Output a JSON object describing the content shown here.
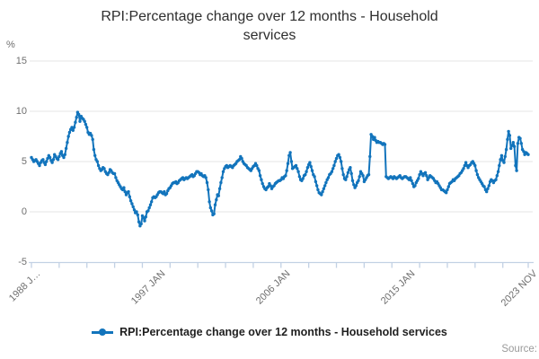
{
  "title": "RPI:Percentage change over 12 months - Household services",
  "axes": {
    "y_unit": "%",
    "y_ticks": [
      {
        "label": "15",
        "value": 15
      },
      {
        "label": "10",
        "value": 10
      },
      {
        "label": "5",
        "value": 5
      },
      {
        "label": "0",
        "value": 0
      },
      {
        "label": "-5",
        "value": -5
      }
    ],
    "x_ticks": [
      {
        "label": "1988 J…",
        "month": 0
      },
      {
        "label": "1997 JAN",
        "month": 108
      },
      {
        "label": "2006 JAN",
        "month": 216
      },
      {
        "label": "2015 JAN",
        "month": 324
      },
      {
        "label": "2023 NOV",
        "month": 430
      }
    ]
  },
  "legend": {
    "label": "RPI:Percentage change over 12 months - Household services"
  },
  "source_label": "Source:",
  "colors": {
    "series": "#1274bc",
    "grid": "#e4e4e4",
    "axis": "#c2d1e4"
  },
  "chart_data": {
    "type": "line",
    "title": "RPI:Percentage change over 12 months - Household services",
    "xlabel": "",
    "ylabel": "%",
    "ylim": [
      -5,
      15
    ],
    "grid": "horizontal",
    "legend_position": "bottom",
    "x_start": "1988-01",
    "x_end": "2023-11",
    "frequency": "monthly",
    "minor_tick_interval_months": 24,
    "series": [
      {
        "name": "RPI:Percentage change over 12 months - Household services",
        "values": [
          5.4,
          5.2,
          5.0,
          5.1,
          5.2,
          5.0,
          4.8,
          4.6,
          4.9,
          5.1,
          5.2,
          4.9,
          4.7,
          5.0,
          5.3,
          5.6,
          5.4,
          5.1,
          4.9,
          5.2,
          5.7,
          5.5,
          5.3,
          5.2,
          5.5,
          5.8,
          6.0,
          5.6,
          5.4,
          5.7,
          6.3,
          6.9,
          7.5,
          7.9,
          8.2,
          8.4,
          8.1,
          8.4,
          8.9,
          9.4,
          9.9,
          9.7,
          9.0,
          9.5,
          9.3,
          9.2,
          9.0,
          8.7,
          8.4,
          7.9,
          7.7,
          7.8,
          7.6,
          7.2,
          6.2,
          5.6,
          5.2,
          5.0,
          4.6,
          4.3,
          4.1,
          4.2,
          4.4,
          4.3,
          4.0,
          3.8,
          3.7,
          3.9,
          4.2,
          4.1,
          3.9,
          3.8,
          3.8,
          3.4,
          3.1,
          2.9,
          2.7,
          2.5,
          2.3,
          2.2,
          2.4,
          2.0,
          1.7,
          1.9,
          2.0,
          1.5,
          1.1,
          0.8,
          0.5,
          0.2,
          -0.1,
          0.0,
          -0.3,
          -1.0,
          -1.4,
          -1.2,
          -0.4,
          -0.6,
          -0.9,
          -0.5,
          0.0,
          0.1,
          0.4,
          0.7,
          1.0,
          1.4,
          1.5,
          1.4,
          1.5,
          1.7,
          1.9,
          2.0,
          2.0,
          1.9,
          1.8,
          2.0,
          1.7,
          1.8,
          2.1,
          2.3,
          2.4,
          2.6,
          2.8,
          2.9,
          2.9,
          3.0,
          2.8,
          2.9,
          3.1,
          3.2,
          3.3,
          3.4,
          3.2,
          3.3,
          3.4,
          3.3,
          3.4,
          3.5,
          3.6,
          3.7,
          3.5,
          3.6,
          3.8,
          4.0,
          4.0,
          3.9,
          3.7,
          3.8,
          3.6,
          3.5,
          3.6,
          3.4,
          2.9,
          2.2,
          1.0,
          0.4,
          0.1,
          -0.3,
          -0.2,
          0.7,
          1.2,
          1.7,
          1.6,
          2.3,
          2.9,
          3.4,
          4.0,
          4.3,
          4.5,
          4.6,
          4.4,
          4.5,
          4.6,
          4.5,
          4.4,
          4.6,
          4.7,
          4.8,
          5.0,
          5.1,
          5.2,
          5.5,
          5.3,
          5.0,
          4.8,
          4.7,
          4.6,
          4.4,
          4.3,
          4.2,
          4.1,
          4.3,
          4.5,
          4.6,
          4.8,
          4.6,
          4.3,
          4.1,
          3.6,
          3.2,
          2.8,
          2.5,
          2.3,
          2.2,
          2.4,
          2.5,
          2.8,
          2.6,
          2.3,
          2.5,
          2.6,
          2.8,
          2.9,
          3.0,
          3.1,
          3.1,
          3.2,
          3.4,
          3.3,
          3.5,
          3.6,
          4.1,
          4.8,
          5.6,
          5.9,
          5.0,
          4.3,
          4.4,
          4.5,
          4.6,
          4.3,
          4.0,
          3.5,
          3.2,
          3.1,
          3.3,
          3.6,
          3.7,
          4.0,
          4.4,
          4.7,
          4.9,
          4.5,
          4.1,
          3.7,
          3.5,
          3.0,
          2.6,
          2.2,
          1.9,
          1.8,
          1.7,
          2.0,
          2.3,
          2.6,
          2.9,
          3.2,
          3.4,
          3.7,
          3.8,
          4.0,
          4.3,
          4.6,
          5.0,
          5.3,
          5.6,
          5.7,
          5.4,
          5.0,
          4.3,
          3.7,
          3.3,
          3.2,
          3.5,
          3.9,
          4.2,
          4.4,
          3.8,
          3.1,
          2.7,
          2.4,
          2.6,
          2.9,
          3.1,
          3.5,
          4.0,
          3.8,
          3.6,
          3.0,
          3.2,
          3.4,
          3.6,
          3.7,
          5.5,
          7.7,
          7.5,
          7.2,
          7.4,
          7.1,
          6.9,
          7.0,
          6.9,
          6.9,
          6.8,
          6.7,
          6.8,
          6.7,
          3.5,
          3.4,
          3.3,
          3.4,
          3.5,
          3.4,
          3.3,
          3.5,
          3.4,
          3.3,
          3.4,
          3.5,
          3.6,
          3.4,
          3.3,
          3.4,
          3.5,
          3.5,
          3.4,
          3.3,
          3.2,
          3.4,
          3.1,
          2.8,
          2.5,
          2.6,
          2.9,
          3.1,
          3.3,
          3.7,
          4.0,
          3.8,
          3.6,
          3.8,
          3.9,
          3.6,
          3.2,
          3.4,
          3.6,
          3.5,
          3.4,
          3.3,
          3.1,
          2.9,
          3.0,
          2.8,
          2.6,
          2.4,
          2.2,
          2.2,
          2.1,
          2.0,
          1.9,
          2.2,
          2.5,
          2.8,
          2.9,
          3.0,
          3.2,
          3.1,
          3.3,
          3.4,
          3.5,
          3.6,
          3.8,
          3.9,
          4.1,
          4.3,
          4.6,
          4.9,
          4.6,
          4.4,
          4.6,
          4.7,
          4.9,
          5.0,
          4.8,
          4.6,
          4.1,
          3.7,
          3.4,
          3.2,
          3.0,
          2.8,
          2.6,
          2.5,
          2.2,
          2.0,
          2.3,
          2.6,
          3.0,
          3.2,
          3.1,
          2.9,
          3.1,
          3.2,
          3.6,
          4.0,
          4.6,
          5.2,
          5.6,
          5.1,
          4.9,
          5.5,
          6.2,
          7.2,
          8.0,
          7.6,
          6.3,
          6.6,
          6.9,
          6.5,
          4.6,
          4.1,
          6.8,
          7.4,
          7.3,
          6.8,
          6.2,
          6.0,
          5.7,
          5.9,
          5.8,
          5.7
        ]
      }
    ]
  }
}
